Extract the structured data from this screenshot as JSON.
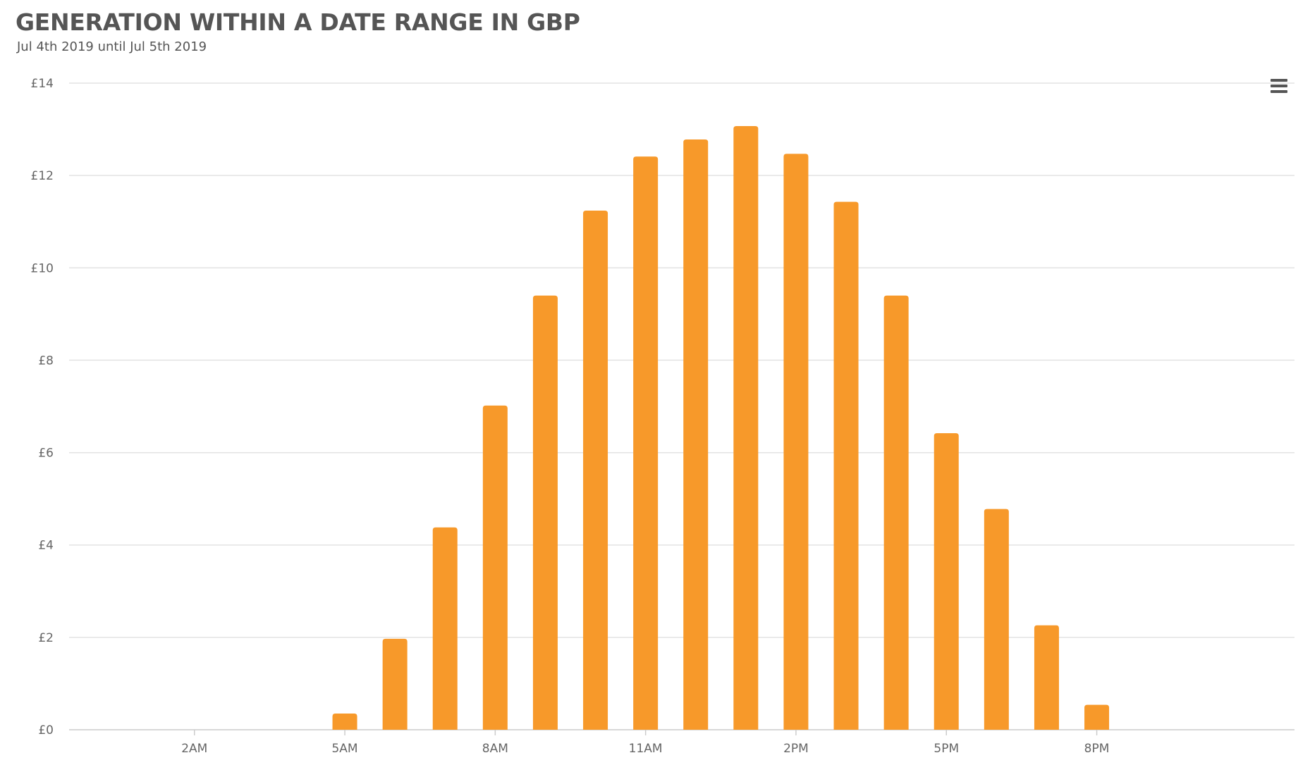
{
  "chart_data": {
    "type": "bar",
    "title": "GENERATION WITHIN A DATE RANGE IN GBP",
    "subtitle": "Jul 4th 2019 until Jul 5th 2019",
    "xlabel": "",
    "ylabel": "",
    "x_tick_labels": [
      "2AM",
      "5AM",
      "8AM",
      "11AM",
      "2PM",
      "5PM",
      "8PM"
    ],
    "y_tick_labels": [
      "£0",
      "£2",
      "£4",
      "£6",
      "£8",
      "£10",
      "£12",
      "£14"
    ],
    "ylim": [
      0,
      14
    ],
    "grid": true,
    "legend": "none",
    "bar_color": "#F7992A",
    "series": [
      {
        "values": [
          {
            "hour": "5AM",
            "value": 0.35
          },
          {
            "hour": "6AM",
            "value": 1.97
          },
          {
            "hour": "7AM",
            "value": 4.38
          },
          {
            "hour": "8AM",
            "value": 7.02
          },
          {
            "hour": "9AM",
            "value": 9.4
          },
          {
            "hour": "10AM",
            "value": 11.24
          },
          {
            "hour": "11AM",
            "value": 12.41
          },
          {
            "hour": "12PM",
            "value": 12.78
          },
          {
            "hour": "1PM",
            "value": 13.07
          },
          {
            "hour": "2PM",
            "value": 12.47
          },
          {
            "hour": "3PM",
            "value": 11.43
          },
          {
            "hour": "4PM",
            "value": 9.4
          },
          {
            "hour": "5PM",
            "value": 6.42
          },
          {
            "hour": "6PM",
            "value": 4.78
          },
          {
            "hour": "7PM",
            "value": 2.26
          },
          {
            "hour": "8PM",
            "value": 0.54
          }
        ]
      }
    ]
  },
  "menu": {
    "icon": "hamburger-menu-icon"
  }
}
